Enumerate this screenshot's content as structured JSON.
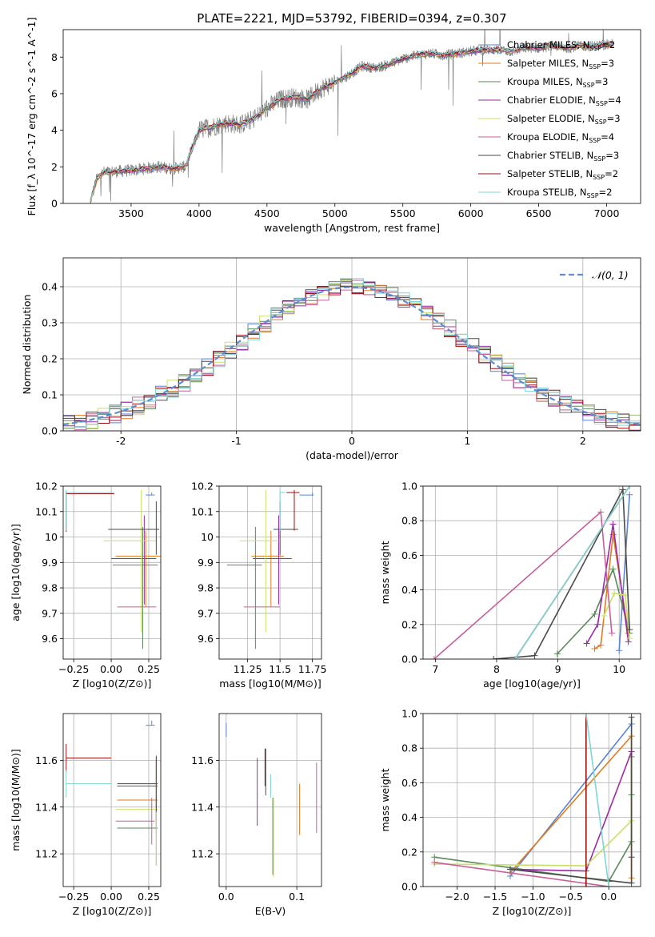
{
  "page_title": "PLATE=2221, MJD=53792, FIBERID=0394, z=0.307",
  "colors": {
    "grid": "#b0b0b0",
    "data_spectrum": "#808080",
    "gaussian": "#5f8dd3",
    "fit_colors": [
      "#5b84d6",
      "#e07b21",
      "#5a8a5a",
      "#9c2aa6",
      "#c8e06a",
      "#c65f9a",
      "#4a4a4a",
      "#9e1010",
      "#7fd6d6"
    ]
  },
  "chart_data": [
    {
      "id": "spectrum",
      "type": "line",
      "title": "PLATE=2221, MJD=53792, FIBERID=0394, z=0.307",
      "xlabel": "wavelength [Angstrom, rest frame]",
      "ylabel": "Flux [f_λ 10^-17 erg cm^-2 s^-1 A^-1]",
      "xlim": [
        3000,
        7250
      ],
      "ylim": [
        0,
        9.5
      ],
      "xticks": [
        3500,
        4000,
        4500,
        5000,
        5500,
        6000,
        6500,
        7000
      ],
      "yticks": [
        0,
        2,
        4,
        6,
        8
      ],
      "grid": false,
      "legend_position": "right",
      "legend": [
        "Chabrier MILES, N_SSP=2",
        "Salpeter MILES, N_SSP=3",
        "Kroupa MILES, N_SSP=3",
        "Chabrier ELODIE, N_SSP=4",
        "Salpeter ELODIE, N_SSP=3",
        "Kroupa ELODIE, N_SSP=4",
        "Chabrier STELIB, N_SSP=3",
        "Salpeter STELIB, N_SSP=2",
        "Kroupa STELIB, N_SSP=2"
      ],
      "continuum": {
        "x": [
          3200,
          3250,
          3300,
          3400,
          3500,
          3600,
          3700,
          3800,
          3900,
          3950,
          4000,
          4100,
          4200,
          4300,
          4400,
          4500,
          4600,
          4700,
          4800,
          4900,
          5000,
          5100,
          5200,
          5300,
          5400,
          5500,
          5600,
          5700,
          5800,
          5900,
          6000,
          6100,
          6200,
          6300,
          6400,
          6500,
          6600,
          6700,
          6800,
          6900,
          7000,
          7050
        ],
        "y": [
          0.1,
          1.4,
          1.7,
          1.75,
          1.8,
          1.9,
          2.0,
          1.9,
          2.0,
          3.0,
          4.0,
          4.2,
          4.4,
          4.3,
          4.6,
          5.2,
          5.7,
          5.8,
          5.7,
          6.3,
          6.6,
          7.0,
          7.5,
          7.4,
          7.6,
          7.9,
          8.1,
          8.2,
          8.1,
          8.2,
          8.3,
          8.4,
          8.4,
          8.3,
          8.5,
          8.5,
          8.6,
          8.5,
          8.6,
          8.6,
          8.7,
          8.7
        ]
      }
    },
    {
      "id": "residuals",
      "type": "histogram",
      "xlabel": "(data-model)/error",
      "ylabel": "Normed distribution",
      "xlim": [
        -2.5,
        2.5
      ],
      "ylim": [
        0,
        0.48
      ],
      "xticks": [
        -2,
        -1,
        0,
        1,
        2
      ],
      "yticks": [
        0.0,
        0.1,
        0.2,
        0.3,
        0.4
      ],
      "grid": true,
      "legend": [
        "𝒩(0, 1)"
      ],
      "legend_position": "top-right",
      "bin_width": 0.1
    },
    {
      "id": "age_vs_Z",
      "type": "scatter",
      "xlabel": "Z [log10(Z/Z⊙)]",
      "ylabel": "age  [log10(age/yr)]",
      "xlim": [
        -0.32,
        0.33
      ],
      "ylim": [
        9.52,
        10.2
      ],
      "xticks": [
        -0.25,
        0.0,
        0.25
      ],
      "xtick_labels": [
        "−0.25",
        "0.00",
        "0.25"
      ],
      "yticks": [
        9.6,
        9.7,
        9.8,
        9.9,
        10.0,
        10.1,
        10.2
      ],
      "grid": true,
      "points": [
        {
          "x": 0.27,
          "y": 10.165,
          "xerr": [
            0.04,
            0.02
          ],
          "yerr": [
            0.0,
            0.01
          ],
          "color": 0
        },
        {
          "x": 0.23,
          "y": 9.925,
          "xerr": [
            0.2,
            0.1
          ],
          "yerr": [
            0.2,
            0.1
          ],
          "color": 1
        },
        {
          "x": 0.21,
          "y": 9.89,
          "xerr": [
            0.2,
            0.1
          ],
          "yerr": [
            0.33,
            0.15
          ],
          "color": 2
        },
        {
          "x": 0.22,
          "y": 9.915,
          "xerr": [
            0.22,
            0.08
          ],
          "yerr": [
            0.18,
            0.17
          ],
          "color": 3
        },
        {
          "x": 0.2,
          "y": 9.985,
          "xerr": [
            0.25,
            0.1
          ],
          "yerr": [
            0.36,
            0.2
          ],
          "color": 4
        },
        {
          "x": 0.22,
          "y": 9.725,
          "xerr": [
            0.18,
            0.08
          ],
          "yerr": [
            0.0,
            0.0
          ],
          "color": 5
        },
        {
          "x": 0.3,
          "y": 10.03,
          "xerr": [
            0.32,
            0.02
          ],
          "yerr": [
            0.1,
            0.11
          ],
          "color": 6
        },
        {
          "x": -0.3,
          "y": 10.17,
          "xerr": [
            0.0,
            0.32
          ],
          "yerr": [
            0.15,
            0.01
          ],
          "color": 7
        },
        {
          "x": -0.3,
          "y": 10.175,
          "xerr": [
            0.0,
            0.32
          ],
          "yerr": [
            0.15,
            0.01
          ],
          "color": 8
        }
      ]
    },
    {
      "id": "age_vs_mass",
      "type": "scatter",
      "xlabel": "mass [log10(M/M⊙)]",
      "ylabel": "",
      "xlim": [
        11.03,
        11.82
      ],
      "ylim": [
        9.52,
        10.2
      ],
      "xticks": [
        11.25,
        11.5,
        11.75
      ],
      "yticks": [
        9.6,
        9.7,
        9.8,
        9.9,
        10.0,
        10.1,
        10.2
      ],
      "grid": true,
      "points": [
        {
          "x": 11.75,
          "y": 10.165,
          "xerr": [
            0.1,
            0.01
          ],
          "yerr": [
            0.0,
            0.01
          ],
          "color": 0
        },
        {
          "x": 11.43,
          "y": 9.925,
          "xerr": [
            0.15,
            0.1
          ],
          "yerr": [
            0.2,
            0.1
          ],
          "color": 1
        },
        {
          "x": 11.31,
          "y": 9.89,
          "xerr": [
            0.22,
            0.05
          ],
          "yerr": [
            0.33,
            0.15
          ],
          "color": 2
        },
        {
          "x": 11.49,
          "y": 9.915,
          "xerr": [
            0.2,
            0.1
          ],
          "yerr": [
            0.18,
            0.17
          ],
          "color": 3
        },
        {
          "x": 11.39,
          "y": 9.985,
          "xerr": [
            0.2,
            0.1
          ],
          "yerr": [
            0.36,
            0.2
          ],
          "color": 4
        },
        {
          "x": 11.34,
          "y": 9.725,
          "xerr": [
            0.12,
            0.16
          ],
          "yerr": [
            0.0,
            0.0
          ],
          "color": 5
        },
        {
          "x": 11.5,
          "y": 10.03,
          "xerr": [
            0.05,
            0.14
          ],
          "yerr": [
            0.1,
            0.11
          ],
          "color": 6
        },
        {
          "x": 11.61,
          "y": 10.175,
          "xerr": [
            0.06,
            0.04
          ],
          "yerr": [
            0.15,
            0.01
          ],
          "color": 7
        },
        {
          "x": 11.5,
          "y": 10.175,
          "xerr": [
            0.0,
            0.04
          ],
          "yerr": [
            0.15,
            0.01
          ],
          "color": 8
        }
      ]
    },
    {
      "id": "weight_vs_age",
      "type": "line",
      "xlabel": "age  [log10(age/yr)]",
      "ylabel": "mass weight",
      "xlim": [
        6.8,
        10.35
      ],
      "ylim": [
        0.0,
        1.0
      ],
      "xticks": [
        7,
        8,
        9,
        10
      ],
      "yticks": [
        0.0,
        0.2,
        0.4,
        0.6,
        0.8,
        1.0
      ],
      "grid": true,
      "series": [
        {
          "color": 0,
          "x": [
            10.0,
            10.17
          ],
          "y": [
            0.05,
            0.95
          ]
        },
        {
          "color": 1,
          "x": [
            9.6,
            9.7,
            9.9,
            10.15
          ],
          "y": [
            0.06,
            0.08,
            0.72,
            0.15
          ]
        },
        {
          "color": 2,
          "x": [
            8.99,
            9.6,
            9.9,
            10.17
          ],
          "y": [
            0.03,
            0.26,
            0.52,
            0.15
          ]
        },
        {
          "color": 3,
          "x": [
            9.47,
            9.65,
            9.9,
            10.15
          ],
          "y": [
            0.09,
            0.2,
            0.78,
            0.1
          ]
        },
        {
          "color": 4,
          "x": [
            9.75,
            9.92,
            10.1,
            10.17
          ],
          "y": [
            0.25,
            0.38,
            0.37,
            0.12
          ]
        },
        {
          "color": 5,
          "x": [
            6.98,
            9.7,
            9.88
          ],
          "y": [
            0.0,
            0.85,
            0.15
          ]
        },
        {
          "color": 6,
          "x": [
            7.95,
            8.62,
            10.06,
            10.17
          ],
          "y": [
            0.0,
            0.02,
            0.98,
            0.17
          ]
        },
        {
          "color": 7,
          "x": [
            8.3,
            10.17
          ],
          "y": [
            0.0,
            1.0
          ]
        },
        {
          "color": 8,
          "x": [
            8.3,
            10.17
          ],
          "y": [
            0.0,
            1.0
          ]
        }
      ]
    },
    {
      "id": "mass_vs_Z",
      "type": "scatter",
      "xlabel": "Z [log10(Z/Z⊙)]",
      "ylabel": "mass [log10(M/M⊙)]",
      "xlim": [
        -0.32,
        0.33
      ],
      "ylim": [
        11.06,
        11.8
      ],
      "xticks": [
        -0.25,
        0.0,
        0.25
      ],
      "xtick_labels": [
        "−0.25",
        "0.00",
        "0.25"
      ],
      "yticks": [
        11.2,
        11.4,
        11.6
      ],
      "grid": true,
      "points": [
        {
          "x": 0.27,
          "y": 11.75,
          "xerr": [
            0.04,
            0.02
          ],
          "yerr": [
            0.0,
            0.02
          ],
          "color": 0
        },
        {
          "x": 0.3,
          "y": 11.43,
          "xerr": [
            0.26,
            0.01
          ],
          "yerr": [
            0.14,
            0.16
          ],
          "color": 1
        },
        {
          "x": 0.3,
          "y": 11.31,
          "xerr": [
            0.26,
            0.01
          ],
          "yerr": [
            0.16,
            0.14
          ],
          "color": 2
        },
        {
          "x": 0.3,
          "y": 11.49,
          "xerr": [
            0.26,
            0.01
          ],
          "yerr": [
            0.15,
            0.12
          ],
          "color": 3
        },
        {
          "x": 0.3,
          "y": 11.39,
          "xerr": [
            0.27,
            0.01
          ],
          "yerr": [
            0.24,
            0.2
          ],
          "color": 4
        },
        {
          "x": 0.27,
          "y": 11.34,
          "xerr": [
            0.24,
            0.02
          ],
          "yerr": [
            0.1,
            0.1
          ],
          "color": 5
        },
        {
          "x": 0.3,
          "y": 11.5,
          "xerr": [
            0.26,
            0.01
          ],
          "yerr": [
            0.12,
            0.12
          ],
          "color": 6
        },
        {
          "x": -0.3,
          "y": 11.61,
          "xerr": [
            0.0,
            0.3
          ],
          "yerr": [
            0.06,
            0.06
          ],
          "color": 7
        },
        {
          "x": -0.3,
          "y": 11.5,
          "xerr": [
            0.0,
            0.3
          ],
          "yerr": [
            0.06,
            0.06
          ],
          "color": 8
        }
      ]
    },
    {
      "id": "mass_vs_ebv",
      "type": "scatter",
      "xlabel": "E(B-V)",
      "ylabel": "",
      "xlim": [
        -0.01,
        0.135
      ],
      "ylim": [
        11.06,
        11.8
      ],
      "xticks": [
        0.0,
        0.1
      ],
      "xtick_labels": [
        "0.0",
        "0.1"
      ],
      "yticks": [
        11.2,
        11.4,
        11.6
      ],
      "grid": true,
      "points": [
        {
          "x": 0.0,
          "y": 11.73,
          "yerr": [
            0.03,
            0.03
          ],
          "color": 0
        },
        {
          "x": 0.104,
          "y": 11.4,
          "yerr": [
            0.12,
            0.1
          ],
          "color": 1
        },
        {
          "x": 0.066,
          "y": 11.31,
          "yerr": [
            0.2,
            0.13
          ],
          "color": 2
        },
        {
          "x": 0.044,
          "y": 11.47,
          "yerr": [
            0.15,
            0.14
          ],
          "color": 3
        },
        {
          "x": 0.067,
          "y": 11.34,
          "yerr": [
            0.24,
            0.1
          ],
          "color": 4
        },
        {
          "x": 0.128,
          "y": 11.44,
          "yerr": [
            0.15,
            0.15
          ],
          "color": 5
        },
        {
          "x": 0.056,
          "y": 11.55,
          "yerr": [
            0.1,
            0.1
          ],
          "color": 6
        },
        {
          "x": 0.055,
          "y": 11.57,
          "yerr": [
            0.08,
            0.08
          ],
          "color": 7
        },
        {
          "x": 0.063,
          "y": 11.49,
          "yerr": [
            0.05,
            0.05
          ],
          "color": 8
        }
      ]
    },
    {
      "id": "weight_vs_Z",
      "type": "line",
      "xlabel": "Z [log10(Z/Z⊙)]",
      "ylabel": "mass weight",
      "xlim": [
        -2.45,
        0.42
      ],
      "ylim": [
        0.0,
        1.0
      ],
      "xticks": [
        -2.0,
        -1.5,
        -1.0,
        -0.5,
        0.0
      ],
      "xtick_labels": [
        "−2.0",
        "−1.5",
        "−1.0",
        "−0.5",
        "0.0"
      ],
      "yticks": [
        0.0,
        0.2,
        0.4,
        0.6,
        0.8,
        1.0
      ],
      "grid": true,
      "series": [
        {
          "color": 0,
          "x": [
            -1.3,
            0.3
          ],
          "y": [
            0.06,
            0.94
          ]
        },
        {
          "color": 1,
          "x": [
            -1.3,
            0.3,
            0.3
          ],
          "y": [
            0.08,
            0.87,
            0.05
          ]
        },
        {
          "color": 2,
          "x": [
            -2.3,
            0.0,
            0.3,
            0.3,
            0.3
          ],
          "y": [
            0.17,
            0.03,
            0.26,
            0.53,
            0.75
          ]
        },
        {
          "color": 3,
          "x": [
            -1.3,
            -0.3,
            0.3
          ],
          "y": [
            0.1,
            0.09,
            0.78
          ]
        },
        {
          "color": 4,
          "x": [
            -2.3,
            -0.3,
            0.3
          ],
          "y": [
            0.13,
            0.12,
            0.38
          ]
        },
        {
          "color": 5,
          "x": [
            -2.3,
            0.0
          ],
          "y": [
            0.14,
            0.0
          ]
        },
        {
          "color": 6,
          "x": [
            -1.3,
            0.3,
            0.3,
            0.3
          ],
          "y": [
            0.1,
            0.02,
            0.17,
            0.98
          ]
        },
        {
          "color": 7,
          "x": [
            -0.3,
            -0.3
          ],
          "y": [
            0.0,
            1.0
          ]
        },
        {
          "color": 8,
          "x": [
            -0.3,
            0.0
          ],
          "y": [
            1.0,
            0.0
          ]
        }
      ]
    }
  ]
}
